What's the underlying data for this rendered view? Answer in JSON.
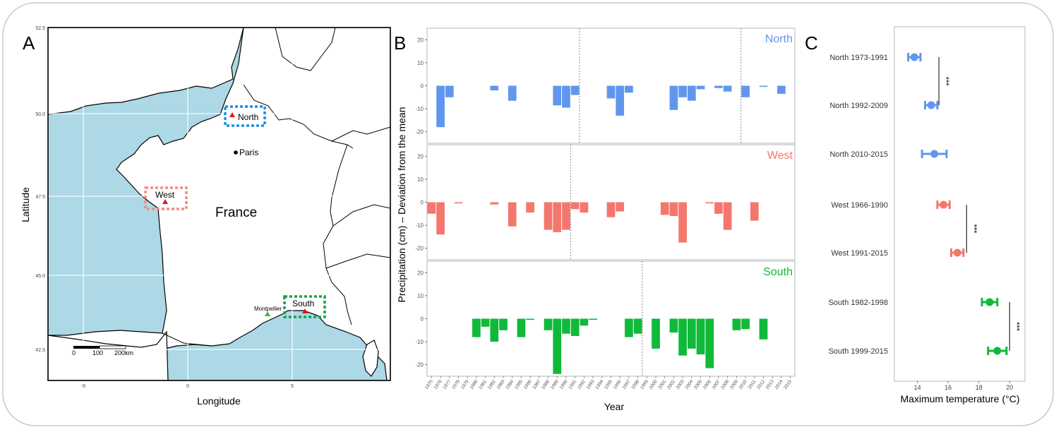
{
  "panels": {
    "a_letter": "A",
    "b_letter": "B",
    "c_letter": "C"
  },
  "map": {
    "country": "France",
    "city": "Paris",
    "site_label": "Montpellier",
    "region_labels": [
      "North",
      "West",
      "South"
    ],
    "xlabel": "Longitude",
    "ylabel": "Latitude",
    "lat_ticks": [
      "52.5",
      "50.0",
      "47.5",
      "45.0",
      "42.5"
    ],
    "lon_ticks": [
      "-5",
      "0",
      "5"
    ],
    "scale_labels": [
      "0",
      "100",
      "200km"
    ],
    "colors": {
      "sea": "#add8e6",
      "land": "#ffffff",
      "site": "#e8101a",
      "montpellier": "#2ec22e"
    }
  },
  "precip": {
    "ylabel": "Precipitation (cm) – Deviation from the mean",
    "xlabel": "Year",
    "y_ticks": [
      "20",
      "10",
      "0",
      "-10",
      "-20"
    ],
    "year_labels": [
      "1975",
      "1976",
      "1977",
      "1978",
      "1979",
      "1980",
      "1981",
      "1982",
      "1983",
      "1984",
      "1985",
      "1986",
      "1987",
      "1988",
      "1989",
      "1990",
      "1991",
      "1992",
      "1993",
      "1994",
      "1995",
      "1996",
      "1997",
      "1998",
      "1999",
      "2000",
      "2001",
      "2002",
      "2003",
      "2004",
      "2005",
      "2006",
      "2007",
      "2008",
      "2009",
      "2010",
      "2011",
      "2012",
      "2013",
      "2014",
      "2015"
    ]
  },
  "temps": {
    "xlabel": "Maximum temperature (°C)",
    "x_ticks": [
      "14",
      "16",
      "18",
      "20"
    ],
    "rows": [
      "North 1973-1991",
      "North 1992-2009",
      "North 2010-2015",
      "West 1966-1990",
      "West 1991-2015",
      "South 1982-1998",
      "South 1999-2015"
    ],
    "significance": [
      "***",
      "***",
      "***"
    ]
  },
  "chart_data": [
    {
      "type": "bar",
      "panel": "B",
      "title": "",
      "xlabel": "Year",
      "ylabel": "Precipitation (cm) – Deviation from the mean",
      "ylim": [
        -25,
        25
      ],
      "grid": false,
      "series": [
        {
          "name": "North",
          "color": "#6196ee",
          "break_years": [
            1992,
            2010
          ],
          "points": [
            [
              1976,
              -18
            ],
            [
              1977,
              -5
            ],
            [
              1982,
              -2
            ],
            [
              1984,
              -6.5
            ],
            [
              1989,
              -8.5
            ],
            [
              1990,
              -9.5
            ],
            [
              1991,
              -4
            ],
            [
              1995,
              -5.5
            ],
            [
              1996,
              -13
            ],
            [
              1997,
              -3
            ],
            [
              2002,
              -10.5
            ],
            [
              2003,
              -5
            ],
            [
              2004,
              -6.5
            ],
            [
              2005,
              -1.5
            ],
            [
              2007,
              -1
            ],
            [
              2008,
              -2.5
            ],
            [
              2010,
              -5
            ],
            [
              2012,
              -0.5
            ],
            [
              2014,
              -3.5
            ]
          ]
        },
        {
          "name": "West",
          "color": "#f4776e",
          "break_years": [
            1991
          ],
          "points": [
            [
              1975,
              -5
            ],
            [
              1976,
              -14
            ],
            [
              1978,
              -0.5
            ],
            [
              1982,
              -1
            ],
            [
              1984,
              -10.5
            ],
            [
              1986,
              -4.5
            ],
            [
              1988,
              -12
            ],
            [
              1989,
              -13
            ],
            [
              1990,
              -12
            ],
            [
              1991,
              -3
            ],
            [
              1992,
              -4.5
            ],
            [
              1995,
              -6.5
            ],
            [
              1996,
              -4
            ],
            [
              2001,
              -5.5
            ],
            [
              2002,
              -6
            ],
            [
              2003,
              -17.5
            ],
            [
              2006,
              -0.5
            ],
            [
              2007,
              -5
            ],
            [
              2008,
              -12
            ],
            [
              2011,
              -8
            ]
          ]
        },
        {
          "name": "South",
          "color": "#10b93a",
          "break_years": [
            1999
          ],
          "points": [
            [
              1980,
              -8
            ],
            [
              1981,
              -3.5
            ],
            [
              1982,
              -10
            ],
            [
              1983,
              -5
            ],
            [
              1985,
              -8
            ],
            [
              1986,
              -0.5
            ],
            [
              1988,
              -5
            ],
            [
              1989,
              -24
            ],
            [
              1990,
              -6.5
            ],
            [
              1991,
              -7.5
            ],
            [
              1992,
              -3
            ],
            [
              1993,
              -0.5
            ],
            [
              1997,
              -8
            ],
            [
              1998,
              -6.5
            ],
            [
              2000,
              -13
            ],
            [
              2002,
              -6
            ],
            [
              2003,
              -16
            ],
            [
              2004,
              -13
            ],
            [
              2005,
              -15.5
            ],
            [
              2006,
              -21.5
            ],
            [
              2009,
              -5
            ],
            [
              2010,
              -4.5
            ],
            [
              2012,
              -9
            ]
          ]
        }
      ]
    },
    {
      "type": "scatter",
      "panel": "C",
      "title": "",
      "xlabel": "Maximum temperature (°C)",
      "ylabel": "",
      "xlim": [
        12.5,
        21
      ],
      "categories": [
        "North 1973-1991",
        "North 1992-2009",
        "North 2010-2015",
        "West 1966-1990",
        "West 1991-2015",
        "South 1982-1998",
        "South 1999-2015"
      ],
      "values": [
        13.8,
        14.9,
        15.1,
        15.7,
        16.6,
        18.7,
        19.2
      ],
      "ci_low": [
        13.4,
        14.5,
        14.3,
        15.3,
        16.2,
        18.2,
        18.6
      ],
      "ci_high": [
        14.2,
        15.3,
        15.9,
        16.1,
        17.0,
        19.2,
        19.8
      ],
      "colors": [
        "#6196ee",
        "#6196ee",
        "#6196ee",
        "#f4776e",
        "#f4776e",
        "#10b93a",
        "#10b93a"
      ]
    }
  ]
}
